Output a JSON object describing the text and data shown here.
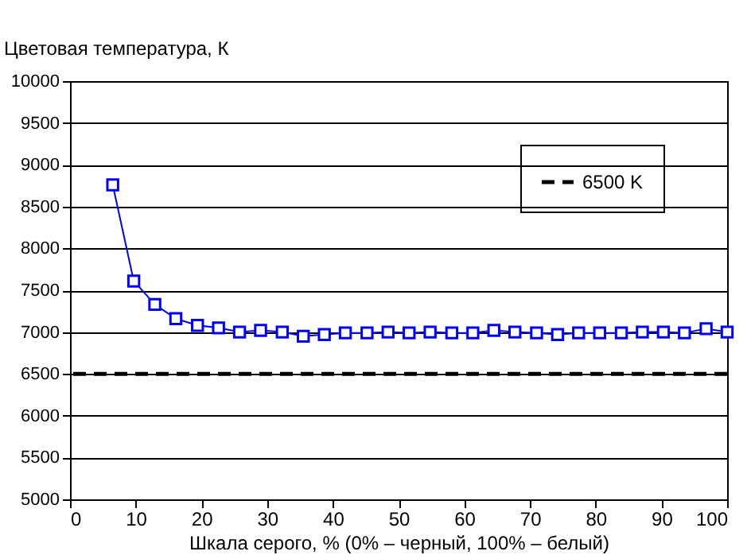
{
  "chart_data": {
    "type": "line",
    "xlabel": "Шкала серого, % (0% – черный, 100% – белый)",
    "ylabel": "Цветовая температура, К",
    "x": [
      6.5,
      9.7,
      12.9,
      16.1,
      19.4,
      22.6,
      25.8,
      29,
      32.3,
      35.5,
      38.7,
      41.9,
      45.2,
      48.4,
      51.6,
      54.8,
      58.1,
      61.3,
      64.5,
      67.7,
      71,
      74.2,
      77.4,
      80.6,
      83.9,
      87.1,
      90.3,
      93.5,
      96.8,
      100
    ],
    "series": [
      {
        "color": "#0000ff",
        "values": [
          8760,
          7610,
          7330,
          7160,
          7080,
          7050,
          7000,
          7020,
          7000,
          6950,
          6970,
          6990,
          6990,
          7000,
          6990,
          7000,
          6990,
          6990,
          7020,
          7000,
          6990,
          6970,
          6990,
          6990,
          6990,
          7000,
          7000,
          6990,
          7040,
          7000
        ]
      }
    ],
    "ref_lines": [
      {
        "axis": "y",
        "value": 6500,
        "label": "6500 K",
        "color": "#000000",
        "line_style": "dashed"
      }
    ],
    "xlim": [
      0,
      100
    ],
    "xticks": [
      0,
      10,
      20,
      30,
      40,
      50,
      60,
      70,
      80,
      90,
      100
    ],
    "ylim": [
      5000,
      10000
    ],
    "yticks": [
      5000,
      5500,
      6000,
      6500,
      7000,
      7500,
      8000,
      8500,
      9000,
      9500,
      10000
    ],
    "grid": "y",
    "legend": "top right",
    "marker": "square",
    "line_style": "solid"
  }
}
